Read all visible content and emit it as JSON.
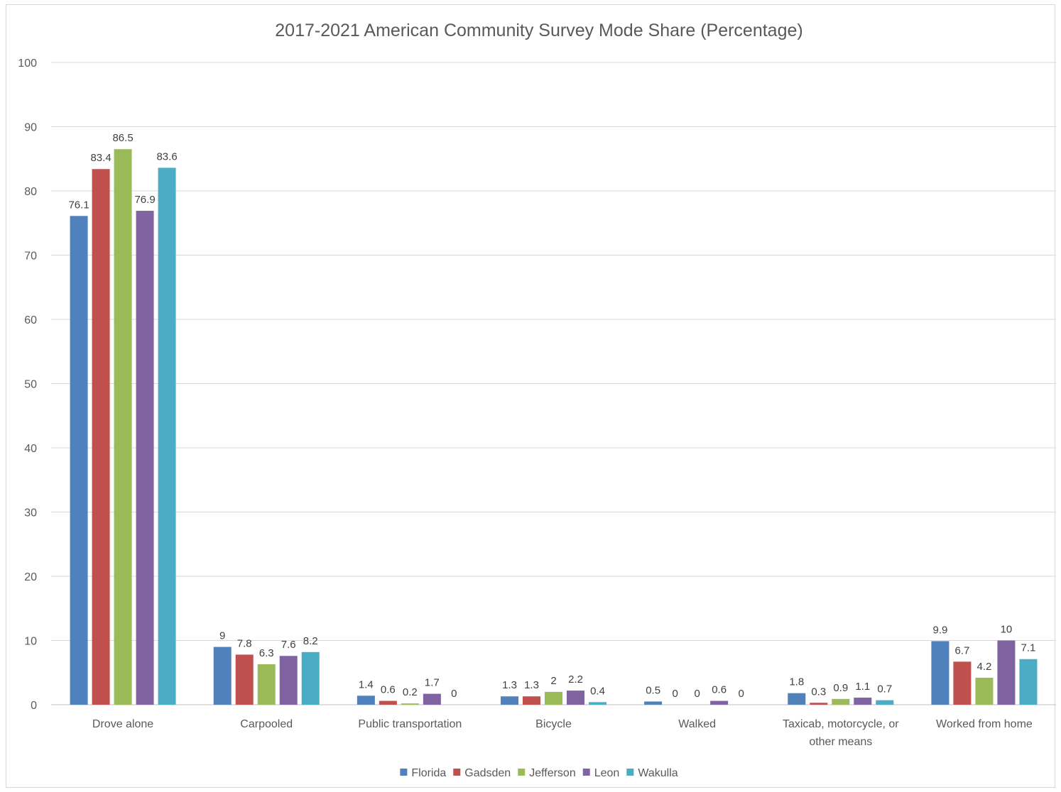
{
  "chart_data": {
    "type": "bar",
    "title": "2017-2021 American Community Survey Mode Share (Percentage)",
    "xlabel": "",
    "ylabel": "",
    "ylim": [
      0,
      100
    ],
    "yticks": [
      0,
      10,
      20,
      30,
      40,
      50,
      60,
      70,
      80,
      90,
      100
    ],
    "grid": true,
    "legend_position": "bottom",
    "categories": [
      [
        "Drove alone"
      ],
      [
        "Carpooled"
      ],
      [
        "Public transportation"
      ],
      [
        "Bicycle"
      ],
      [
        "Walked"
      ],
      [
        "Taxicab, motorcycle, or",
        "other means"
      ],
      [
        "Worked from home"
      ]
    ],
    "series": [
      {
        "name": "Florida",
        "color": "#4F81BD",
        "values": [
          76.1,
          9,
          1.4,
          1.3,
          0.5,
          1.8,
          9.9
        ]
      },
      {
        "name": "Gadsden",
        "color": "#C0504D",
        "values": [
          83.4,
          7.8,
          0.6,
          1.3,
          0,
          0.3,
          6.7
        ]
      },
      {
        "name": "Jefferson",
        "color": "#9BBB59",
        "values": [
          86.5,
          6.3,
          0.2,
          2,
          0,
          0.9,
          4.2
        ]
      },
      {
        "name": "Leon",
        "color": "#8064A2",
        "values": [
          76.9,
          7.6,
          1.7,
          2.2,
          0.6,
          1.1,
          10
        ]
      },
      {
        "name": "Wakulla",
        "color": "#4BACC6",
        "values": [
          83.6,
          8.2,
          0,
          0.4,
          0,
          0.7,
          7.1
        ]
      }
    ]
  }
}
